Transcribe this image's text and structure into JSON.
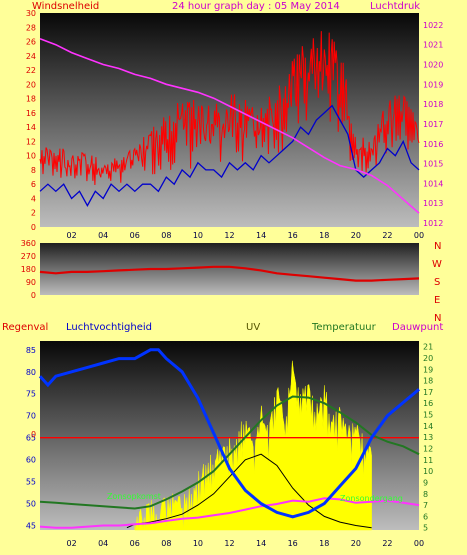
{
  "page": {
    "title": "24 hour graph day : 05 May 2014"
  },
  "colors": {
    "background": "#ffff99",
    "wind_speed": "#ff0000",
    "wind_gust": "#ff0000",
    "wind_avg": "#0000cc",
    "pressure": "#ff33ff",
    "wind_dir": "#dd0000",
    "humidity": "#0033ff",
    "temperature": "#227722",
    "uv": "#ffff00",
    "solar": "#000000",
    "dewpoint": "#ff33ff",
    "rain_line": "#ff0000",
    "sunrise_label": "#33ff33"
  },
  "chart_data": [
    {
      "type": "line",
      "id": "wind-pressure",
      "left_label": "Windsnelheid",
      "right_label": "Luchtdruk",
      "x_ticks": [
        "02",
        "04",
        "06",
        "08",
        "10",
        "12",
        "14",
        "16",
        "18",
        "20",
        "22",
        "00"
      ],
      "y_left_ticks": [
        0,
        2,
        4,
        6,
        8,
        10,
        12,
        14,
        16,
        18,
        20,
        22,
        24,
        26,
        28,
        30
      ],
      "y_left_range": [
        0,
        30
      ],
      "y_right_ticks": [
        1012,
        1013,
        1014,
        1015,
        1016,
        1017,
        1018,
        1019,
        1020,
        1021,
        1022
      ],
      "y_right_range": [
        1011.8,
        1022.6
      ],
      "x_range": [
        0,
        24
      ],
      "series": [
        {
          "key": "gust_upper",
          "x": [
            0,
            1,
            2,
            3,
            4,
            5,
            6,
            7,
            8,
            9,
            10,
            11,
            12,
            13,
            14,
            15,
            16,
            17,
            18,
            19,
            20,
            21,
            22,
            23,
            24
          ],
          "values": [
            11,
            12,
            10,
            11,
            9,
            10,
            11,
            14,
            16,
            18,
            18,
            17,
            19,
            18,
            17,
            20,
            24,
            27,
            29,
            26,
            13,
            12,
            18,
            19,
            15
          ]
        },
        {
          "key": "gust_lower",
          "x": [
            0,
            1,
            2,
            3,
            4,
            5,
            6,
            7,
            8,
            9,
            10,
            11,
            12,
            13,
            14,
            15,
            16,
            17,
            18,
            19,
            20,
            21,
            22,
            23,
            24
          ],
          "values": [
            6,
            7,
            6,
            5,
            6,
            6,
            7,
            7,
            8,
            8,
            7,
            8,
            9,
            9,
            10,
            10,
            11,
            13,
            13,
            12,
            7,
            8,
            10,
            10,
            9
          ]
        },
        {
          "key": "wind_avg",
          "x": [
            0,
            0.5,
            1,
            1.5,
            2,
            2.5,
            3,
            3.5,
            4,
            4.5,
            5,
            5.5,
            6,
            6.5,
            7,
            7.5,
            8,
            8.5,
            9,
            9.5,
            10,
            10.5,
            11,
            11.5,
            12,
            12.5,
            13,
            13.5,
            14,
            14.5,
            15,
            15.5,
            16,
            16.5,
            17,
            17.5,
            18,
            18.5,
            19,
            19.5,
            20,
            20.5,
            21,
            21.5,
            22,
            22.5,
            23,
            23.5,
            24
          ],
          "values": [
            5,
            6,
            5,
            6,
            4,
            5,
            3,
            5,
            4,
            6,
            5,
            6,
            5,
            6,
            6,
            5,
            7,
            6,
            8,
            7,
            9,
            8,
            8,
            7,
            9,
            8,
            9,
            8,
            10,
            9,
            10,
            11,
            12,
            14,
            13,
            15,
            16,
            17,
            15,
            13,
            8,
            7,
            8,
            9,
            11,
            10,
            12,
            9,
            8
          ]
        },
        {
          "key": "pressure",
          "x": [
            0,
            1,
            2,
            3,
            4,
            5,
            6,
            7,
            8,
            9,
            10,
            11,
            12,
            13,
            14,
            15,
            16,
            17,
            18,
            19,
            20,
            21,
            22,
            23,
            24
          ],
          "values": [
            1021.3,
            1021.0,
            1020.6,
            1020.3,
            1020.0,
            1019.8,
            1019.5,
            1019.3,
            1019.0,
            1018.8,
            1018.6,
            1018.3,
            1017.9,
            1017.5,
            1017.1,
            1016.7,
            1016.3,
            1015.8,
            1015.3,
            1014.9,
            1014.7,
            1014.4,
            1013.9,
            1013.2,
            1012.5
          ]
        }
      ]
    },
    {
      "type": "line",
      "id": "wind-direction",
      "right_labels": [
        "N",
        "W",
        "S",
        "E",
        "N"
      ],
      "y_ticks": [
        0,
        90,
        180,
        270,
        360
      ],
      "y_range": [
        0,
        360
      ],
      "x_range": [
        0,
        24
      ],
      "series": [
        {
          "key": "direction",
          "x": [
            0,
            1,
            2,
            3,
            4,
            5,
            6,
            7,
            8,
            9,
            10,
            11,
            12,
            13,
            14,
            15,
            16,
            17,
            18,
            19,
            20,
            21,
            22,
            23,
            24
          ],
          "values": [
            160,
            150,
            160,
            160,
            165,
            170,
            175,
            180,
            180,
            185,
            190,
            195,
            195,
            185,
            170,
            150,
            140,
            130,
            120,
            110,
            100,
            100,
            105,
            110,
            115
          ]
        }
      ]
    },
    {
      "type": "line",
      "id": "rain-humidity-temp",
      "top_labels": [
        "Regenval",
        "Luchtvochtigheid",
        "UV",
        "Temperatuur",
        "Dauwpunt"
      ],
      "annotations": [
        "Zonsopkomst",
        "Zonsondergang"
      ],
      "y_left_ticks": [
        45,
        50,
        55,
        60,
        65,
        70,
        75,
        80,
        85
      ],
      "y_left_range": [
        44,
        87
      ],
      "y_right_ticks": [
        5,
        6,
        7,
        8,
        9,
        10,
        11,
        12,
        13,
        14,
        15,
        16,
        17,
        18,
        19,
        20,
        21
      ],
      "y_right_range": [
        4.8,
        21.5
      ],
      "rain_label": "0",
      "x_range": [
        0,
        24
      ],
      "series": [
        {
          "key": "humidity",
          "x": [
            0,
            0.5,
            1,
            2,
            3,
            4,
            5,
            6,
            7,
            7.5,
            8,
            9,
            10,
            10.5,
            11,
            12,
            13,
            14,
            15,
            16,
            17,
            18,
            19,
            20,
            21,
            22,
            23,
            24
          ],
          "values": [
            79,
            77,
            79,
            80,
            81,
            82,
            83,
            83,
            85,
            85,
            83,
            80,
            74,
            70,
            66,
            58,
            53,
            50,
            48,
            47,
            48,
            50,
            54,
            58,
            65,
            70,
            73,
            76
          ]
        },
        {
          "key": "temperature",
          "x": [
            0,
            1,
            2,
            3,
            4,
            5,
            6,
            7,
            8,
            9,
            10,
            11,
            12,
            13,
            14,
            15,
            16,
            17,
            18,
            19,
            20,
            21,
            22,
            23,
            24
          ],
          "values": [
            7.3,
            7.2,
            7.1,
            7.0,
            6.9,
            6.8,
            6.7,
            6.9,
            7.5,
            8.2,
            9.0,
            10.0,
            11.5,
            13.0,
            14.5,
            15.8,
            16.6,
            16.5,
            16.0,
            15.2,
            14.3,
            13.2,
            12.6,
            12.2,
            11.5
          ]
        },
        {
          "key": "dewpoint",
          "x": [
            0,
            1,
            2,
            3,
            4,
            5,
            6,
            7,
            8,
            9,
            10,
            11,
            12,
            13,
            14,
            15,
            16,
            17,
            18,
            19,
            20,
            21,
            22,
            23,
            24
          ],
          "values": [
            5.1,
            5.0,
            5.0,
            5.1,
            5.2,
            5.2,
            5.3,
            5.4,
            5.6,
            5.8,
            5.9,
            6.1,
            6.3,
            6.6,
            6.9,
            7.1,
            7.4,
            7.3,
            7.6,
            7.5,
            7.2,
            7.3,
            7.4,
            7.2,
            7.0
          ]
        },
        {
          "key": "uv",
          "x": [
            6,
            6.5,
            7,
            7.5,
            8,
            8.5,
            9,
            9.5,
            10,
            10.5,
            11,
            11.5,
            12,
            12.5,
            13,
            13.5,
            14,
            14.5,
            15,
            15.5,
            16,
            16.5,
            17,
            17.5,
            18,
            18.5,
            19,
            19.5,
            20,
            20.5,
            21
          ],
          "values": [
            6,
            7,
            8,
            7,
            8,
            9,
            8,
            9,
            10,
            11,
            12,
            12,
            13,
            14,
            15,
            13,
            16,
            14,
            18,
            15,
            20,
            17,
            19,
            16,
            18,
            15,
            16,
            14,
            15,
            13,
            12
          ]
        },
        {
          "key": "solar",
          "x": [
            5.5,
            6,
            7,
            8,
            9,
            10,
            11,
            12,
            13,
            14,
            15,
            16,
            17,
            18,
            19,
            20,
            21
          ],
          "values": [
            5,
            5.3,
            5.5,
            5.8,
            6.2,
            7.0,
            8.0,
            9.5,
            11.0,
            11.5,
            10.5,
            8.5,
            7.0,
            6.0,
            5.5,
            5.2,
            5.0
          ]
        },
        {
          "key": "rain",
          "x": [
            0,
            24
          ],
          "values": [
            65,
            65
          ]
        }
      ]
    }
  ]
}
